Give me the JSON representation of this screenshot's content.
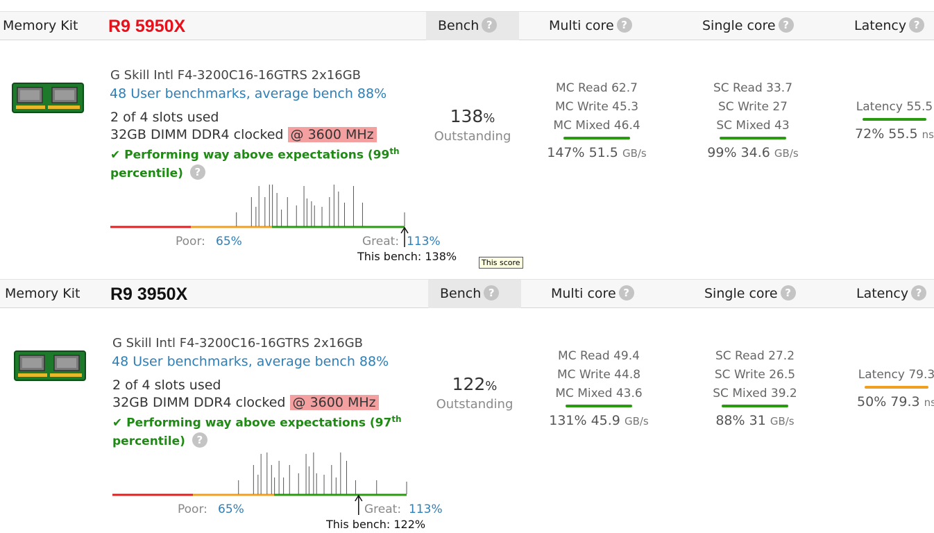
{
  "panels": [
    {
      "cpu_name": "R9 5950X",
      "cpu_color": "#e8101a",
      "header": {
        "memory_kit": "Memory Kit",
        "bench": "Bench",
        "multi_core": "Multi core",
        "single_core": "Single core",
        "latency": "Latency",
        "help_glyph": "?"
      },
      "kit_name": "G Skill Intl F4-3200C16-16GTRS 2x16GB",
      "user_benchmarks": "48 User benchmarks, average bench 88%",
      "slots": "2 of 4 slots used",
      "module_prefix": "32GB DIMM DDR4 clocked",
      "clock": "@ 3600 MHz",
      "performance_text": "Performing way above expectations (99",
      "performance_sup": "th",
      "performance_tail": "percentile)",
      "bench_value": "138",
      "bench_unit": "%",
      "bench_label": "Outstanding",
      "multi_core": {
        "read": "MC Read 62.7",
        "write": "MC Write 45.3",
        "mixed": "MC Mixed 46.4",
        "summary": "147% 51.5",
        "unit": "GB/s",
        "bar_color": "#2a9a10"
      },
      "single_core": {
        "read": "SC Read 33.7",
        "write": "SC Write 27",
        "mixed": "SC Mixed 43",
        "summary": "99% 34.6",
        "unit": "GB/s",
        "bar_color": "#2a9a10"
      },
      "latency": {
        "label": "Latency 55.5",
        "summary": "72% 55.5",
        "unit": "ns",
        "bar_color": "#2a9a10"
      },
      "distribution": {
        "poor_label": "Poor:",
        "poor_value": "65%",
        "great_label": "Great:",
        "great_value": "113%",
        "this_bench": "This bench: 138%",
        "marker_value": 138,
        "bars": [
          {
            "v": 82,
            "h": 20
          },
          {
            "v": 87,
            "h": 42
          },
          {
            "v": 88.5,
            "h": 28
          },
          {
            "v": 89.5,
            "h": 58
          },
          {
            "v": 91.5,
            "h": 42
          },
          {
            "v": 93,
            "h": 60
          },
          {
            "v": 94,
            "h": 60
          },
          {
            "v": 95.5,
            "h": 48
          },
          {
            "v": 97,
            "h": 24
          },
          {
            "v": 99,
            "h": 42
          },
          {
            "v": 102,
            "h": 30
          },
          {
            "v": 104.5,
            "h": 58
          },
          {
            "v": 105.5,
            "h": 40
          },
          {
            "v": 107,
            "h": 36
          },
          {
            "v": 108,
            "h": 30
          },
          {
            "v": 110.5,
            "h": 28
          },
          {
            "v": 113,
            "h": 42
          },
          {
            "v": 114.5,
            "h": 60
          },
          {
            "v": 116,
            "h": 50
          },
          {
            "v": 118,
            "h": 34
          },
          {
            "v": 121,
            "h": 58
          },
          {
            "v": 124,
            "h": 34
          },
          {
            "v": 138,
            "h": 20
          }
        ]
      },
      "tooltip": "This score"
    },
    {
      "cpu_name": "R9 3950X",
      "cpu_color": "#111111",
      "header": {
        "memory_kit": "Memory Kit",
        "bench": "Bench",
        "multi_core": "Multi core",
        "single_core": "Single core",
        "latency": "Latency",
        "help_glyph": "?"
      },
      "kit_name": "G Skill Intl F4-3200C16-16GTRS 2x16GB",
      "user_benchmarks": "48 User benchmarks, average bench 88%",
      "slots": "2 of 4 slots used",
      "module_prefix": "32GB DIMM DDR4 clocked",
      "clock": "@ 3600 MHz",
      "performance_text": "Performing way above expectations (97",
      "performance_sup": "th",
      "performance_tail": "percentile)",
      "bench_value": "122",
      "bench_unit": "%",
      "bench_label": "Outstanding",
      "multi_core": {
        "read": "MC Read 49.4",
        "write": "MC Write 44.8",
        "mixed": "MC Mixed 43.6",
        "summary": "131% 45.9",
        "unit": "GB/s",
        "bar_color": "#2a9a10"
      },
      "single_core": {
        "read": "SC Read 27.2",
        "write": "SC Write 26.5",
        "mixed": "SC Mixed 39.2",
        "summary": "88% 31",
        "unit": "GB/s",
        "bar_color": "#2a9a10"
      },
      "latency": {
        "label": "Latency 79.3",
        "summary": "50% 79.3",
        "unit": "ns",
        "bar_color": "#f0a020"
      },
      "distribution": {
        "poor_label": "Poor:",
        "poor_value": "65%",
        "great_label": "Great:",
        "great_value": "113%",
        "this_bench": "This bench: 122%",
        "marker_value": 122,
        "bars": [
          {
            "v": 82,
            "h": 20
          },
          {
            "v": 87,
            "h": 42
          },
          {
            "v": 88.5,
            "h": 28
          },
          {
            "v": 89.5,
            "h": 58
          },
          {
            "v": 91.5,
            "h": 60
          },
          {
            "v": 93,
            "h": 42
          },
          {
            "v": 94,
            "h": 24
          },
          {
            "v": 95.5,
            "h": 48
          },
          {
            "v": 97,
            "h": 24
          },
          {
            "v": 99,
            "h": 42
          },
          {
            "v": 102,
            "h": 30
          },
          {
            "v": 104.5,
            "h": 58
          },
          {
            "v": 105.5,
            "h": 40
          },
          {
            "v": 107,
            "h": 60
          },
          {
            "v": 108,
            "h": 30
          },
          {
            "v": 110.5,
            "h": 28
          },
          {
            "v": 113,
            "h": 42
          },
          {
            "v": 114.5,
            "h": 24
          },
          {
            "v": 116,
            "h": 60
          },
          {
            "v": 118,
            "h": 48
          },
          {
            "v": 121,
            "h": 20
          },
          {
            "v": 128,
            "h": 20
          },
          {
            "v": 138,
            "h": 18
          }
        ]
      },
      "tooltip": ""
    }
  ]
}
